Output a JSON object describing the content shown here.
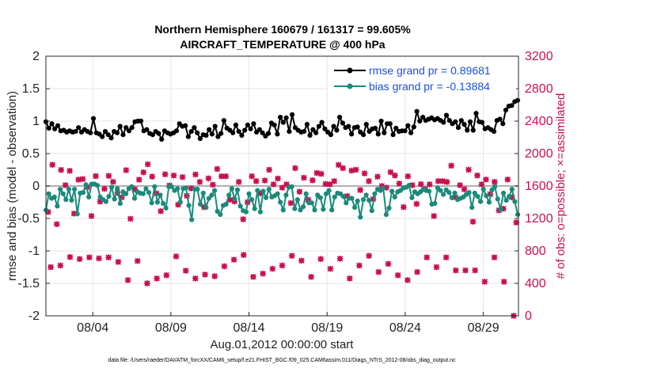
{
  "chart_data": {
    "type": "line",
    "title": "Northern Hemisphere 160679 / 161317 = 99.605%",
    "subtitle": "AIRCRAFT_TEMPERATURE @ 400 hPa",
    "xlabel": "Aug.01,2012 00:00:00 start",
    "ylabel_left": "rmse and bias (model - observation)",
    "ylabel_right": "# of obs: o=possible; ×=assimilated",
    "footnote": "data file: /Users/raeder/DAI/ATM_forcXX/CAM6_setup/f.e21.FHIST_BGC.f09_025.CAM6assim.011/Diags_NTrS_2012-08/obs_diag_output.nc",
    "x_ticks": [
      "08/04",
      "08/09",
      "08/14",
      "08/19",
      "08/24",
      "08/29"
    ],
    "x_tick_days": [
      4,
      9,
      14,
      19,
      24,
      29
    ],
    "x_range_days": [
      1.0,
      31.25
    ],
    "y_left": {
      "range": [
        -2,
        2
      ],
      "ticks": [
        "-2",
        "-1.5",
        "-1",
        "-0.5",
        "0",
        "0.5",
        "1",
        "1.5",
        "2"
      ],
      "tick_values": [
        -2,
        -1.5,
        -1,
        -0.5,
        0,
        0.5,
        1,
        1.5,
        2
      ]
    },
    "y_right": {
      "range": [
        0,
        3200
      ],
      "ticks": [
        "0",
        "400",
        "800",
        "1200",
        "1600",
        "2000",
        "2400",
        "2800",
        "3200"
      ],
      "tick_values": [
        0,
        400,
        800,
        1200,
        1600,
        2000,
        2400,
        2800,
        3200
      ]
    },
    "grid": true,
    "legend": [
      "rmse grand pr = 0.89681",
      "bias grand pr = -0.13884"
    ],
    "legend_position": "top-right",
    "colors": {
      "rmse": "#000000",
      "bias": "#1a8a7a",
      "obs": "#c8104e",
      "zero_line": "#b0b0b0",
      "legend_text": "#1a4fe0"
    },
    "series": [
      {
        "name": "rmse",
        "label": "rmse grand pr = 0.89681",
        "values": [
          0.99,
          0.89,
          0.96,
          0.88,
          0.93,
          0.85,
          0.86,
          0.83,
          0.85,
          0.83,
          0.84,
          0.9,
          0.83,
          0.87,
          0.84,
          0.82,
          1.04,
          0.82,
          0.8,
          0.76,
          0.84,
          0.79,
          0.74,
          0.84,
          0.82,
          0.92,
          0.79,
          0.9,
          0.85,
          0.9,
          0.99,
          1.0,
          1.0,
          0.85,
          0.87,
          0.81,
          0.79,
          0.84,
          0.81,
          0.72,
          0.85,
          0.82,
          0.8,
          0.82,
          0.85,
          0.96,
          0.92,
          0.93,
          0.76,
          0.84,
          0.9,
          0.82,
          0.73,
          0.79,
          0.78,
          0.87,
          0.8,
          0.92,
          0.76,
          0.81,
          1.01,
          0.89,
          0.86,
          0.82,
          0.94,
          0.84,
          0.78,
          0.86,
          0.94,
          0.88,
          0.96,
          0.83,
          0.87,
          0.82,
          0.77,
          0.81,
          0.97,
          0.94,
          0.8,
          1.06,
          0.98,
          1.05,
          0.84,
          1.1,
          0.9,
          0.86,
          0.83,
          0.84,
          0.95,
          0.78,
          0.87,
          0.82,
          0.92,
          0.98,
          0.88,
          0.83,
          0.79,
          0.92,
          0.86,
          1.06,
          0.97,
          0.9,
          0.92,
          0.8,
          0.9,
          0.91,
          0.83,
          0.79,
          0.95,
          0.84,
          0.88,
          0.89,
          0.8,
          1.0,
          0.82,
          0.96,
          0.96,
          0.79,
          0.89,
          0.84,
          0.85,
          0.85,
          0.93,
          0.82,
          0.91,
          1.15,
          1.0,
          1.06,
          1.01,
          1.03,
          1.05,
          1.02,
          1.04,
          1.01,
          0.98,
          1.09,
          1.01,
          0.96,
          0.99,
          0.9,
          1.01,
          0.95,
          0.86,
          0.99,
          0.86,
          1.12,
          0.99,
          0.98,
          0.88,
          0.9,
          0.87,
          0.84,
          1.01,
          1.03,
          0.96,
          1.17,
          1.23,
          1.24,
          1.3,
          1.32
        ]
      },
      {
        "name": "bias",
        "label": "bias grand pr = -0.13884",
        "values": [
          -0.37,
          -0.12,
          -0.19,
          -0.17,
          -0.31,
          -0.05,
          -0.12,
          -0.21,
          -0.05,
          -0.22,
          -0.05,
          -0.43,
          -0.11,
          -0.1,
          0.02,
          -0.17,
          0.03,
          0.03,
          0.01,
          -0.17,
          -0.21,
          -0.24,
          -0.16,
          -0.02,
          -0.2,
          -0.04,
          -0.27,
          -0.09,
          -0.12,
          -0.04,
          -0.01,
          -0.19,
          -0.09,
          -0.11,
          -0.12,
          -0.04,
          -0.1,
          -0.26,
          -0.01,
          -0.25,
          -0.14,
          -0.27,
          -0.34,
          -0.01,
          -0.01,
          -0.07,
          -0.04,
          -0.25,
          -0.04,
          -0.03,
          -0.3,
          -0.52,
          -0.05,
          -0.05,
          -0.28,
          -0.11,
          -0.33,
          -0.19,
          -0.14,
          -0.07,
          -0.39,
          -0.44,
          -0.3,
          -0.28,
          -0.14,
          -0.04,
          -0.2,
          -0.06,
          -0.31,
          -0.38,
          -0.4,
          -0.12,
          -0.21,
          -0.35,
          -0.07,
          -0.4,
          -0.08,
          -0.18,
          -0.05,
          -0.17,
          -0.15,
          -0.12,
          -0.25,
          -0.37,
          -0.14,
          -0.02,
          -0.01,
          -0.35,
          -0.21,
          -0.37,
          -0.32,
          -0.12,
          -0.26,
          -0.26,
          -0.37,
          -0.14,
          -0.18,
          -0.36,
          -0.12,
          -0.07,
          -0.37,
          -0.17,
          -0.11,
          -0.12,
          -0.16,
          -0.26,
          -0.19,
          -0.19,
          -0.33,
          -0.23,
          -0.48,
          -0.21,
          -0.14,
          -0.22,
          -0.38,
          -0.12,
          -0.05,
          -0.07,
          -0.03,
          -0.44,
          -0.34,
          -0.08,
          -0.17,
          -0.09,
          -0.07,
          -0.03,
          -0.02,
          0.01,
          -0.18,
          -0.09,
          -0.12,
          -0.09,
          -0.05,
          -0.07,
          -0.08,
          -0.28,
          -0.27,
          -0.03,
          -0.07,
          -0.13,
          -0.06,
          -0.1,
          -0.18,
          -0.11,
          -0.21,
          -0.19,
          -0.17,
          -0.13,
          -0.1,
          -0.33,
          -0.11,
          -0.16,
          -0.24,
          -0.05,
          -0.15,
          -0.25,
          -0.06,
          -0.01,
          -0.2,
          -0.36,
          -0.11,
          -0.22,
          -0.16,
          -0.05,
          -0.24,
          -0.44
        ]
      },
      {
        "name": "obs_possible",
        "label": "possible",
        "values": [
          1280,
          1862,
          1130,
          1798,
          1610,
          1787,
          1260,
          1678,
          1686,
          1585,
          1230,
          1722,
          1408,
          1565,
          1725,
          1652,
          1515,
          1460,
          1795,
          1196,
          1560,
          1678,
          1769,
          1868,
          1716,
          1508,
          1290,
          1744,
          1606,
          1730,
          1370,
          1710,
          1480,
          1570,
          1742,
          1650,
          1340,
          1694,
          1616,
          1810,
          1720,
          1720,
          1430,
          1410,
          1650,
          1190,
          1400,
          1720,
          1660,
          1510,
          1668,
          1800,
          1620,
          1692,
          1580,
          1620,
          1390,
          1820,
          1530,
          1702,
          1430,
          1670,
          1760,
          1750,
          1625,
          1620,
          1660,
          1860,
          1820,
          1475,
          1790,
          1800,
          1550,
          1755,
          1660,
          1440,
          1715,
          1600,
          1580,
          1770,
          1730,
          1630,
          1340,
          1720,
          1610,
          1380,
          1622,
          1560,
          1620,
          1230,
          1660,
          1660,
          1650,
          1850,
          1460,
          1610,
          1560,
          1800,
          1160,
          1730,
          1620,
          1680,
          1500,
          1650,
          1300,
          1320,
          1680,
          1460,
          1150
        ]
      },
      {
        "name": "obs_assimilated",
        "label": "assimilated",
        "values": [
          1280,
          1862,
          1130,
          1798,
          1610,
          1787,
          1260,
          1678,
          1686,
          1585,
          1230,
          1722,
          1408,
          1565,
          1725,
          1652,
          1515,
          1460,
          1795,
          1196,
          1560,
          1678,
          1769,
          1868,
          1716,
          1508,
          1290,
          1744,
          1606,
          1730,
          1370,
          1710,
          1480,
          1570,
          1742,
          1650,
          1340,
          1694,
          1616,
          1810,
          1720,
          1720,
          1430,
          1410,
          1650,
          1190,
          1400,
          1720,
          1660,
          1510,
          1668,
          1800,
          1620,
          1692,
          1580,
          1620,
          1390,
          1820,
          1530,
          1702,
          1430,
          1670,
          1760,
          1750,
          1625,
          1620,
          1660,
          1860,
          1820,
          1475,
          1790,
          1800,
          1550,
          1755,
          1660,
          1440,
          1715,
          1600,
          1580,
          1770,
          1730,
          1630,
          1340,
          1720,
          1610,
          1380,
          1622,
          1560,
          1620,
          1230,
          1660,
          1660,
          1650,
          1850,
          1460,
          1610,
          1560,
          1800,
          1160,
          1730,
          1620,
          1680,
          1500,
          1650,
          1300,
          1320,
          1680,
          1460,
          1150
        ]
      },
      {
        "name": "obs_low",
        "label": "obs count (low row)",
        "values": [
          600,
          620,
          724,
          700,
          720,
          708,
          720,
          664,
          440,
          676,
          400,
          460,
          500,
          732,
          556,
          460,
          508,
          488,
          610,
          692,
          750,
          480,
          520,
          580,
          620,
          740,
          680,
          480,
          700,
          580,
          704,
          460,
          620,
          740,
          540,
          640,
          500,
          440,
          540,
          720,
          600,
          720,
          560,
          560,
          560,
          420,
          720,
          420,
          0
        ]
      }
    ]
  }
}
